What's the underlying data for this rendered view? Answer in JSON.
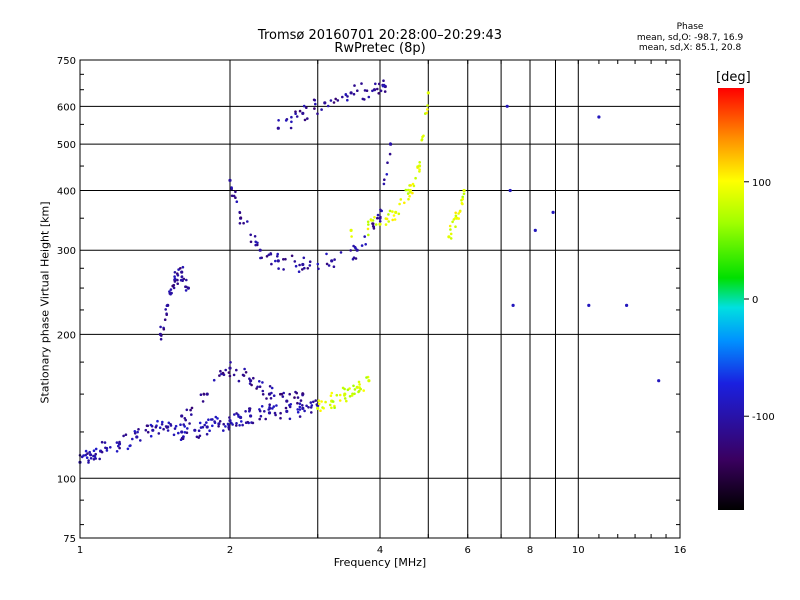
{
  "chart_data": {
    "type": "scatter",
    "title": "Tromsø 20160701 20:28:00–20:29:43",
    "subtitle": "RwPretec (8p)",
    "xlabel": "Frequency [MHz]",
    "ylabel": "Stationary phase Virtual Height [km]",
    "x_scale": "log",
    "y_scale": "log",
    "xlim": [
      1,
      16
    ],
    "ylim": [
      75,
      750
    ],
    "x_ticks": [
      1,
      2,
      4,
      6,
      8,
      10,
      16
    ],
    "x_tick_labels": [
      "1",
      "2",
      "4",
      "6",
      "8",
      "10",
      "16"
    ],
    "x_minor_gridlines": [
      3,
      5,
      7,
      9
    ],
    "y_ticks": [
      75,
      100,
      200,
      300,
      400,
      500,
      600,
      750
    ],
    "y_tick_labels": [
      "75",
      "100",
      "200",
      "300",
      "400",
      "500",
      "600",
      "750"
    ],
    "grid": true,
    "stats": {
      "title": "Phase",
      "line1": "mean, sd,O: -98.7, 16.9",
      "line2": "mean, sd,X:  85.1, 20.8"
    },
    "colorbar": {
      "label": "[deg]",
      "range": [
        -180,
        180
      ],
      "ticks": [
        100,
        0,
        -100
      ],
      "tick_labels": [
        "100",
        "0",
        "-100"
      ],
      "colormap": "rainbow (black-purple-blue-cyan-green-yellow-red)"
    },
    "traces": [
      {
        "region": "low E/F1 trace",
        "x": [
          1.0,
          1.05,
          1.1,
          1.2,
          1.3,
          1.4,
          1.5,
          1.6,
          1.7,
          1.8,
          1.9,
          2.0,
          2.1,
          2.2,
          2.4,
          2.6,
          2.8,
          3.0
        ],
        "y": [
          108,
          112,
          114,
          118,
          122,
          126,
          128,
          125,
          126,
          128,
          130,
          132,
          134,
          135,
          137,
          138,
          140,
          142
        ],
        "phase": -100
      },
      {
        "region": "F1 cusp spread",
        "x": [
          1.6,
          1.8,
          2.0,
          2.2,
          2.4,
          2.6,
          2.8
        ],
        "y": [
          135,
          150,
          170,
          160,
          150,
          145,
          150
        ],
        "phase": -110
      },
      {
        "region": "E-sporadic spur",
        "x": [
          1.45,
          1.5,
          1.55,
          1.6,
          1.65
        ],
        "y": [
          200,
          230,
          260,
          270,
          250
        ],
        "phase": -110
      },
      {
        "region": "F2 O-mode trace",
        "x": [
          2.0,
          2.1,
          2.3,
          2.5,
          2.8,
          3.2,
          3.6,
          4.0,
          4.2
        ],
        "y": [
          420,
          350,
          300,
          285,
          280,
          285,
          300,
          350,
          500
        ],
        "phase": -105
      },
      {
        "region": "F2 upper O-mode",
        "x": [
          2.5,
          2.8,
          3.1,
          3.5,
          3.9,
          4.1
        ],
        "y": [
          540,
          580,
          610,
          640,
          650,
          660
        ],
        "phase": -110
      },
      {
        "region": "F2 X-mode trace",
        "x": [
          3.5,
          4.0,
          4.3,
          4.6,
          4.8,
          5.0
        ],
        "y": [
          330,
          340,
          360,
          400,
          450,
          640
        ],
        "phase": 90
      },
      {
        "region": "F1 X-mode",
        "x": [
          3.0,
          3.2,
          3.4,
          3.6,
          3.8
        ],
        "y": [
          140,
          145,
          150,
          155,
          160
        ],
        "phase": 85
      },
      {
        "region": "high-freq X-mode",
        "x": [
          5.5,
          5.7,
          5.9
        ],
        "y": [
          320,
          350,
          400
        ],
        "phase": 90
      },
      {
        "region": "sparse echoes",
        "x": [
          7.2,
          7.3,
          7.4,
          8.2,
          8.9,
          10.5,
          11.0,
          12.5,
          14.5
        ],
        "y": [
          600,
          400,
          230,
          330,
          360,
          230,
          570,
          230,
          160
        ],
        "phase": -90
      }
    ]
  }
}
